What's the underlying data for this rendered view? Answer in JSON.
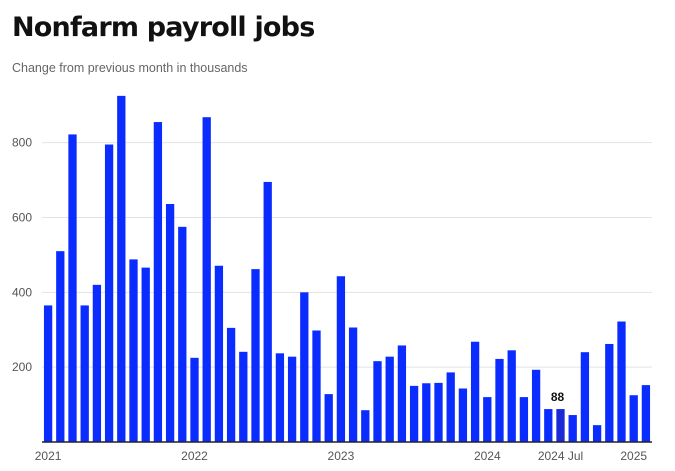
{
  "title": "Nonfarm payroll jobs",
  "subtitle": "Change from previous month in thousands",
  "colors": {
    "bar": "#0a2cff",
    "highlight_bar": "#1a2ad6",
    "grid": "#e3e3e3",
    "axis": "#222222"
  },
  "chart_data": {
    "type": "bar",
    "title": "Nonfarm payroll jobs",
    "subtitle": "Change from previous month in thousands",
    "xlabel": "",
    "ylabel": "",
    "ylim": [
      0,
      930
    ],
    "y_ticks": [
      200,
      400,
      600,
      800
    ],
    "y_tick_labels": [
      "200",
      "400",
      "600",
      "800"
    ],
    "grid": true,
    "x_tick_labels": [
      {
        "label": "2021",
        "index": 0
      },
      {
        "label": "2022",
        "index": 12
      },
      {
        "label": "2023",
        "index": 24
      },
      {
        "label": "2024",
        "index": 36
      },
      {
        "label": "2024 Jul",
        "index": 42
      },
      {
        "label": "2025",
        "index": 48
      }
    ],
    "values": [
      365,
      510,
      822,
      365,
      420,
      795,
      925,
      488,
      466,
      855,
      636,
      575,
      225,
      868,
      471,
      305,
      241,
      462,
      695,
      237,
      228,
      400,
      298,
      128,
      443,
      306,
      85,
      216,
      228,
      258,
      150,
      157,
      158,
      186,
      143,
      268,
      120,
      222,
      245,
      120,
      193,
      88,
      88,
      72,
      240,
      45,
      262,
      322,
      125,
      152
    ],
    "annotations": [
      {
        "index": 42,
        "label": "88"
      }
    ]
  }
}
